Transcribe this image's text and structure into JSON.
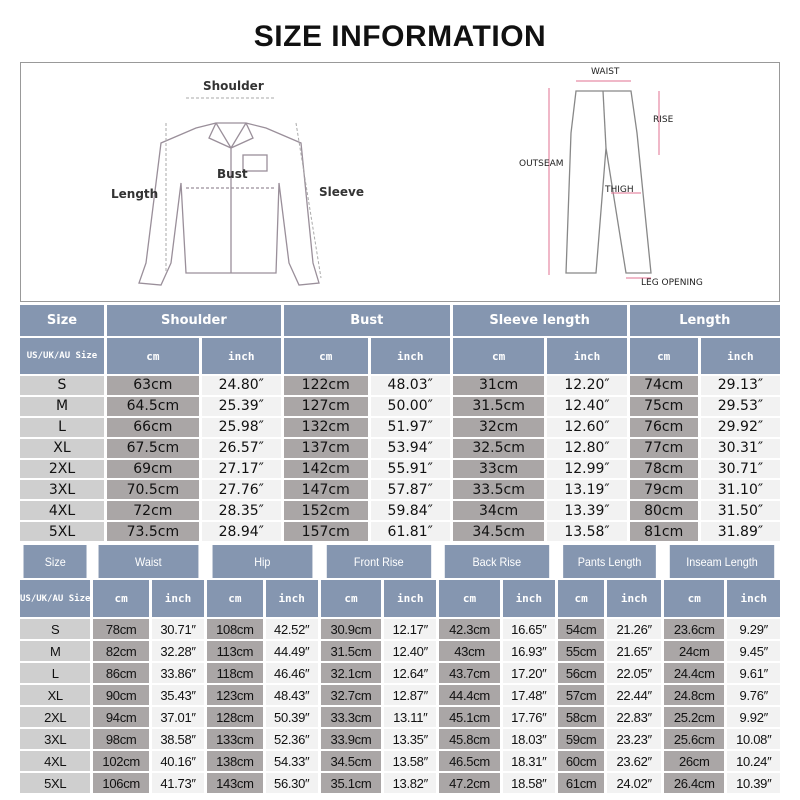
{
  "title": "SIZE INFORMATION",
  "diagram": {
    "shirt_labels": {
      "shoulder": "Shoulder",
      "bust": "Bust",
      "length": "Length",
      "sleeve": "Sleeve"
    },
    "pants_labels": {
      "waist": "WAIST",
      "rise": "RISE",
      "outseam": "OUTSEAM",
      "thigh": "THIGH",
      "leg_opening": "LEG OPENING"
    }
  },
  "top_table": {
    "size_header": "Size",
    "size_sub": "US/UK/AU Size",
    "groups": [
      "Shoulder",
      "Bust",
      "Sleeve length",
      "Length"
    ],
    "units": [
      "cm",
      "inch"
    ],
    "rows": [
      [
        "S",
        "63cm",
        "24.80″",
        "122cm",
        "48.03″",
        "31cm",
        "12.20″",
        "74cm",
        "29.13″"
      ],
      [
        "M",
        "64.5cm",
        "25.39″",
        "127cm",
        "50.00″",
        "31.5cm",
        "12.40″",
        "75cm",
        "29.53″"
      ],
      [
        "L",
        "66cm",
        "25.98″",
        "132cm",
        "51.97″",
        "32cm",
        "12.60″",
        "76cm",
        "29.92″"
      ],
      [
        "XL",
        "67.5cm",
        "26.57″",
        "137cm",
        "53.94″",
        "32.5cm",
        "12.80″",
        "77cm",
        "30.31″"
      ],
      [
        "2XL",
        "69cm",
        "27.17″",
        "142cm",
        "55.91″",
        "33cm",
        "12.99″",
        "78cm",
        "30.71″"
      ],
      [
        "3XL",
        "70.5cm",
        "27.76″",
        "147cm",
        "57.87″",
        "33.5cm",
        "13.19″",
        "79cm",
        "31.10″"
      ],
      [
        "4XL",
        "72cm",
        "28.35″",
        "152cm",
        "59.84″",
        "34cm",
        "13.39″",
        "80cm",
        "31.50″"
      ],
      [
        "5XL",
        "73.5cm",
        "28.94″",
        "157cm",
        "61.81″",
        "34.5cm",
        "13.58″",
        "81cm",
        "31.89″"
      ]
    ]
  },
  "bottom_table": {
    "size_header": "Size",
    "size_sub": "US/UK/AU Size",
    "groups": [
      "Waist",
      "Hip",
      "Front Rise",
      "Back Rise",
      "Pants Length",
      "Inseam Length"
    ],
    "units": [
      "cm",
      "inch"
    ],
    "rows": [
      [
        "S",
        "78cm",
        "30.71″",
        "108cm",
        "42.52″",
        "30.9cm",
        "12.17″",
        "42.3cm",
        "16.65″",
        "54cm",
        "21.26″",
        "23.6cm",
        "9.29″"
      ],
      [
        "M",
        "82cm",
        "32.28″",
        "113cm",
        "44.49″",
        "31.5cm",
        "12.40″",
        "43cm",
        "16.93″",
        "55cm",
        "21.65″",
        "24cm",
        "9.45″"
      ],
      [
        "L",
        "86cm",
        "33.86″",
        "118cm",
        "46.46″",
        "32.1cm",
        "12.64″",
        "43.7cm",
        "17.20″",
        "56cm",
        "22.05″",
        "24.4cm",
        "9.61″"
      ],
      [
        "XL",
        "90cm",
        "35.43″",
        "123cm",
        "48.43″",
        "32.7cm",
        "12.87″",
        "44.4cm",
        "17.48″",
        "57cm",
        "22.44″",
        "24.8cm",
        "9.76″"
      ],
      [
        "2XL",
        "94cm",
        "37.01″",
        "128cm",
        "50.39″",
        "33.3cm",
        "13.11″",
        "45.1cm",
        "17.76″",
        "58cm",
        "22.83″",
        "25.2cm",
        "9.92″"
      ],
      [
        "3XL",
        "98cm",
        "38.58″",
        "133cm",
        "52.36″",
        "33.9cm",
        "13.35″",
        "45.8cm",
        "18.03″",
        "59cm",
        "23.23″",
        "25.6cm",
        "10.08″"
      ],
      [
        "4XL",
        "102cm",
        "40.16″",
        "138cm",
        "54.33″",
        "34.5cm",
        "13.58″",
        "46.5cm",
        "18.31″",
        "60cm",
        "23.62″",
        "26cm",
        "10.24″"
      ],
      [
        "5XL",
        "106cm",
        "41.73″",
        "143cm",
        "56.30″",
        "35.1cm",
        "13.82″",
        "47.2cm",
        "18.58″",
        "61cm",
        "24.02″",
        "26.4cm",
        "10.39″"
      ]
    ]
  },
  "colors": {
    "header": "#8596b0",
    "cm_cell": "#aaa6a6",
    "inch_cell": "#f2f2f2",
    "size_cell": "#cfcfcf"
  }
}
